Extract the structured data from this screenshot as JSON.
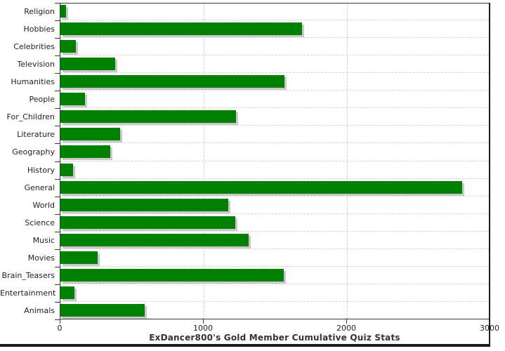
{
  "chart_data": {
    "type": "bar",
    "orientation": "horizontal",
    "title": "ExDancer800's Gold Member Cumulative Quiz Stats",
    "categories": [
      "Religion",
      "Hobbies",
      "Celebrities",
      "Television",
      "Humanities",
      "People",
      "For_Children",
      "Literature",
      "Geography",
      "History",
      "General",
      "World",
      "Science",
      "Music",
      "Movies",
      "Brain_Teasers",
      "Entertainment",
      "Animals"
    ],
    "values": [
      40,
      1685,
      110,
      380,
      1565,
      170,
      1225,
      415,
      350,
      90,
      2805,
      1170,
      1220,
      1315,
      260,
      1560,
      100,
      590
    ],
    "xlabel": "",
    "ylabel": "",
    "xlim": [
      0,
      3000
    ],
    "xticks": [
      0,
      1000,
      2000,
      3000
    ],
    "grid": "dashed",
    "legend_position": "none",
    "bar_color": "#008000",
    "bar_shadow_color": "#c9c9c9",
    "grid_color": "#cfcfcf",
    "axis_color": "#3a3a3a",
    "text_color": "#222222",
    "frame_color": "#1a1a1a"
  }
}
